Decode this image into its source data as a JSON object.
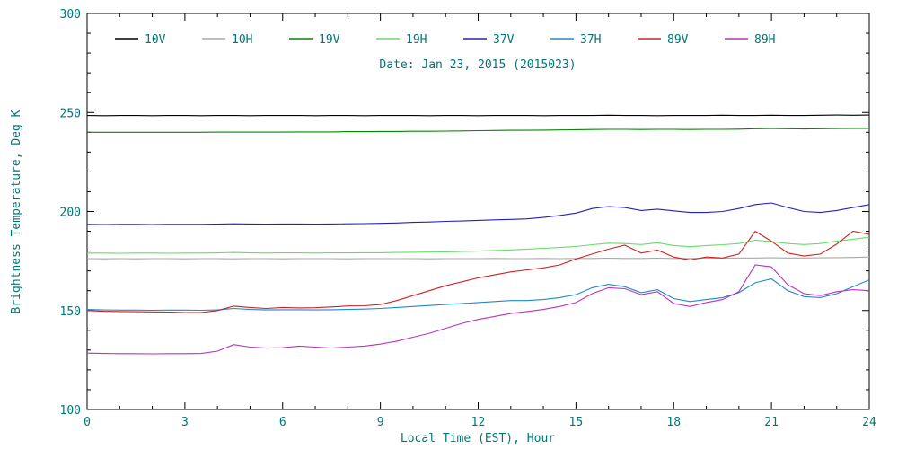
{
  "text_color": "#007777",
  "axis_color": "#000000",
  "background_color": "#ffffff",
  "chart_data": {
    "type": "line",
    "title": "Date: Jan 23, 2015 (2015023)",
    "xlabel": "Local Time (EST), Hour",
    "ylabel": "Brightness Temperature, Deg K",
    "xlim": [
      0,
      24
    ],
    "ylim": [
      100,
      300
    ],
    "xticks": [
      0,
      3,
      6,
      9,
      12,
      15,
      18,
      21,
      24
    ],
    "yticks": [
      100,
      150,
      200,
      250,
      300
    ],
    "x_minor_step": 1,
    "y_minor_step": 10,
    "grid": false,
    "legend_position": "top-inside",
    "x": [
      0,
      0.5,
      1,
      1.5,
      2,
      2.5,
      3,
      3.5,
      4,
      4.5,
      5,
      5.5,
      6,
      6.5,
      7,
      7.5,
      8,
      8.5,
      9,
      9.5,
      10,
      10.5,
      11,
      11.5,
      12,
      12.5,
      13,
      13.5,
      14,
      14.5,
      15,
      15.5,
      16,
      16.5,
      17,
      17.5,
      18,
      18.5,
      19,
      19.5,
      20,
      20.5,
      21,
      21.5,
      22,
      22.5,
      23,
      23.5,
      24
    ],
    "series": [
      {
        "name": "10V",
        "color": "#000000",
        "values": [
          248.5,
          248.4,
          248.5,
          248.5,
          248.4,
          248.5,
          248.5,
          248.4,
          248.5,
          248.5,
          248.4,
          248.5,
          248.5,
          248.5,
          248.4,
          248.5,
          248.5,
          248.4,
          248.5,
          248.5,
          248.5,
          248.4,
          248.5,
          248.5,
          248.4,
          248.5,
          248.5,
          248.5,
          248.4,
          248.5,
          248.5,
          248.5,
          248.6,
          248.5,
          248.5,
          248.4,
          248.5,
          248.5,
          248.5,
          248.6,
          248.5,
          248.5,
          248.6,
          248.5,
          248.5,
          248.6,
          248.7,
          248.6,
          248.7
        ]
      },
      {
        "name": "10H",
        "color": "#a8a8a8",
        "values": [
          176.2,
          176.1,
          176.2,
          176.1,
          176.2,
          176.2,
          176.1,
          176.2,
          176.2,
          176.1,
          176.2,
          176.2,
          176.1,
          176.2,
          176.2,
          176.2,
          176.1,
          176.2,
          176.2,
          176.2,
          176.2,
          176.1,
          176.2,
          176.2,
          176.2,
          176.3,
          176.2,
          176.2,
          176.3,
          176.2,
          176.3,
          176.3,
          176.4,
          176.3,
          176.3,
          176.4,
          176.3,
          176.3,
          176.4,
          176.4,
          176.5,
          176.5,
          176.6,
          176.5,
          176.5,
          176.6,
          176.7,
          176.8,
          177.0
        ]
      },
      {
        "name": "19V",
        "color": "#008800",
        "values": [
          240.0,
          240.0,
          240.0,
          240.0,
          240.0,
          240.0,
          240.0,
          240.0,
          240.1,
          240.1,
          240.1,
          240.1,
          240.1,
          240.2,
          240.2,
          240.2,
          240.3,
          240.3,
          240.4,
          240.4,
          240.5,
          240.5,
          240.6,
          240.7,
          240.8,
          240.9,
          241.0,
          241.0,
          241.1,
          241.2,
          241.3,
          241.4,
          241.5,
          241.5,
          241.4,
          241.5,
          241.5,
          241.4,
          241.5,
          241.5,
          241.6,
          241.8,
          241.9,
          241.8,
          241.7,
          241.8,
          241.9,
          242.0,
          242.0
        ]
      },
      {
        "name": "19H",
        "color": "#66dd66",
        "values": [
          179.0,
          179.0,
          178.9,
          179.0,
          179.0,
          178.9,
          179.0,
          179.0,
          179.1,
          179.3,
          179.1,
          179.0,
          179.1,
          179.1,
          179.0,
          179.1,
          179.1,
          179.2,
          179.2,
          179.3,
          179.4,
          179.5,
          179.6,
          179.8,
          180.0,
          180.3,
          180.6,
          181.0,
          181.4,
          181.8,
          182.3,
          183.2,
          184.0,
          183.8,
          183.3,
          184.2,
          182.8,
          182.2,
          182.8,
          183.2,
          183.8,
          185.5,
          184.8,
          183.8,
          183.3,
          183.8,
          185.0,
          186.0,
          187.0
        ]
      },
      {
        "name": "37V",
        "color": "#2222bb",
        "values": [
          193.5,
          193.4,
          193.5,
          193.5,
          193.4,
          193.5,
          193.5,
          193.5,
          193.6,
          193.8,
          193.7,
          193.6,
          193.7,
          193.7,
          193.6,
          193.7,
          193.8,
          193.9,
          194.0,
          194.2,
          194.5,
          194.7,
          195.0,
          195.2,
          195.5,
          195.8,
          196.0,
          196.3,
          197.0,
          198.0,
          199.2,
          201.5,
          202.5,
          202.0,
          200.5,
          201.2,
          200.3,
          199.5,
          199.5,
          200.0,
          201.5,
          203.5,
          204.3,
          202.0,
          200.0,
          199.5,
          200.5,
          202.0,
          203.5
        ]
      },
      {
        "name": "37H",
        "color": "#2288cc",
        "values": [
          150.5,
          150.3,
          150.2,
          150.2,
          150.1,
          150.2,
          150.2,
          150.1,
          150.3,
          151.0,
          150.5,
          150.3,
          150.4,
          150.4,
          150.3,
          150.4,
          150.5,
          150.7,
          151.0,
          151.5,
          152.0,
          152.5,
          153.0,
          153.5,
          154.0,
          154.5,
          155.0,
          155.0,
          155.5,
          156.5,
          158.0,
          161.5,
          163.2,
          162.0,
          159.0,
          160.5,
          156.0,
          154.5,
          155.5,
          156.5,
          159.0,
          164.0,
          166.0,
          160.0,
          157.0,
          156.5,
          158.5,
          162.0,
          165.5
        ]
      },
      {
        "name": "89V",
        "color": "#cc2222",
        "values": [
          150.0,
          149.6,
          149.5,
          149.4,
          149.3,
          149.2,
          149.0,
          149.0,
          150.0,
          152.2,
          151.5,
          151.0,
          151.5,
          151.3,
          151.4,
          151.8,
          152.3,
          152.4,
          153.0,
          155.0,
          157.5,
          160.0,
          162.5,
          164.5,
          166.5,
          168.0,
          169.5,
          170.5,
          171.5,
          173.0,
          176.0,
          178.5,
          181.0,
          183.0,
          179.0,
          180.5,
          177.0,
          175.5,
          177.0,
          176.5,
          178.5,
          190.0,
          185.0,
          179.0,
          177.5,
          178.5,
          183.5,
          190.0,
          188.5
        ]
      },
      {
        "name": "89H",
        "color": "#bb33bb",
        "values": [
          128.5,
          128.3,
          128.2,
          128.2,
          128.1,
          128.2,
          128.2,
          128.3,
          129.5,
          132.8,
          131.5,
          131.0,
          131.2,
          132.0,
          131.5,
          131.0,
          131.5,
          132.0,
          133.0,
          134.5,
          136.5,
          138.5,
          141.0,
          143.5,
          145.5,
          147.0,
          148.5,
          149.5,
          150.5,
          152.0,
          154.0,
          158.5,
          161.5,
          161.0,
          158.0,
          159.5,
          153.5,
          152.0,
          154.0,
          155.5,
          159.5,
          173.0,
          172.0,
          163.0,
          158.5,
          157.5,
          159.5,
          160.5,
          160.0
        ]
      }
    ]
  }
}
